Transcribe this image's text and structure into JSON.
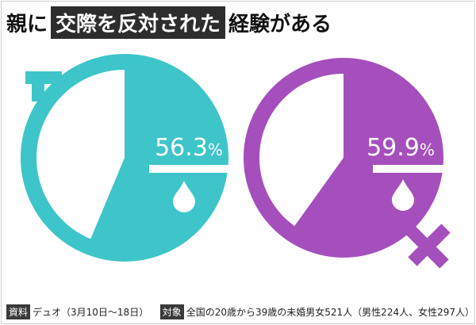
{
  "title": {
    "prefix": "親に",
    "highlight": "交際を反対された",
    "suffix": "経験がある"
  },
  "chart_data": {
    "type": "pie",
    "charts": [
      {
        "label": "男性",
        "value": 56.3,
        "value_text": "56.3",
        "unit": "%",
        "color": "#3ec5c9",
        "icon": "male-symbol"
      },
      {
        "label": "女性",
        "value": 59.9,
        "value_text": "59.9",
        "unit": "%",
        "color": "#a54fbd",
        "icon": "female-symbol"
      }
    ]
  },
  "footer": {
    "source_tag": "資料",
    "source_text": "デュオ（3月10日〜18日）",
    "target_tag": "対象",
    "target_text": "全国の20歳から39歳の未婚男女521人（男性224人、女性297人）"
  }
}
